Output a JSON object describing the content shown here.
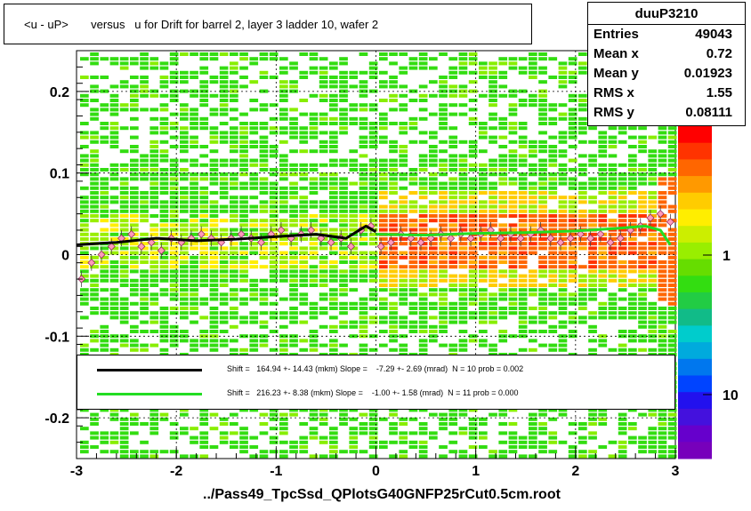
{
  "title": "<u - uP>       versus   u for Drift for barrel 2, layer 3 ladder 10, wafer 2",
  "footer": "../Pass49_TpcSsd_QPlotsG40GNFP25rCut0.5cm.root",
  "stats": {
    "name": "duuP3210",
    "rows": [
      {
        "label": "Entries",
        "value": "49043"
      },
      {
        "label": "Mean x",
        "value": "0.72"
      },
      {
        "label": "Mean y",
        "value": "0.01923"
      },
      {
        "label": "RMS x",
        "value": "1.55"
      },
      {
        "label": "RMS y",
        "value": "0.08111"
      }
    ]
  },
  "legend": [
    {
      "color": "#000000",
      "text": "Shift =   164.94 +- 14.43 (mkm) Slope =    -7.29 +- 2.69 (mrad)  N = 10 prob = 0.002"
    },
    {
      "color": "#22dd22",
      "text": "Shift =   216.23 +- 8.38 (mkm) Slope =    -1.00 +- 1.58 (mrad)  N = 11 prob = 0.000"
    }
  ],
  "chart_data": {
    "type": "heatmap",
    "xlim": [
      -3,
      3
    ],
    "ylim": [
      -0.25,
      0.25
    ],
    "x_ticks": [
      -3,
      -2,
      -1,
      0,
      1,
      2,
      3
    ],
    "y_ticks": [
      -0.2,
      -0.1,
      0,
      0.1,
      0.2
    ],
    "y_tick_labels": [
      "-0.2",
      "-0.1",
      "0",
      "0.1",
      "0.2"
    ],
    "color_scale": {
      "type": "log",
      "tick_labels": [
        "1",
        "10"
      ],
      "tick_values": [
        1,
        10
      ]
    },
    "grid": true,
    "profile_points": {
      "x": [
        -2.95,
        -2.85,
        -2.75,
        -2.65,
        -2.55,
        -2.45,
        -2.35,
        -2.25,
        -2.15,
        -2.05,
        -1.95,
        -1.85,
        -1.75,
        -1.65,
        -1.55,
        -1.45,
        -1.35,
        -1.25,
        -1.15,
        -1.05,
        -0.95,
        -0.85,
        -0.75,
        -0.65,
        -0.55,
        -0.45,
        -0.35,
        -0.25,
        -0.15,
        -0.05,
        0.05,
        0.15,
        0.25,
        0.35,
        0.45,
        0.55,
        0.65,
        0.75,
        0.85,
        0.95,
        1.05,
        1.15,
        1.25,
        1.35,
        1.45,
        1.55,
        1.65,
        1.75,
        1.85,
        1.95,
        2.05,
        2.15,
        2.25,
        2.35,
        2.45,
        2.55,
        2.65,
        2.75,
        2.85,
        2.95
      ],
      "y": [
        -0.03,
        -0.01,
        0.0,
        0.01,
        0.02,
        0.025,
        0.01,
        0.015,
        0.005,
        0.02,
        0.015,
        0.02,
        0.025,
        0.02,
        0.015,
        0.02,
        0.025,
        0.02,
        0.015,
        0.025,
        0.03,
        0.02,
        0.025,
        0.03,
        0.02,
        0.015,
        0.02,
        0.01,
        0.03,
        0.035,
        0.01,
        0.015,
        0.025,
        0.02,
        0.015,
        0.02,
        0.025,
        0.02,
        0.025,
        0.02,
        0.025,
        0.03,
        0.02,
        0.025,
        0.02,
        0.025,
        0.03,
        0.02,
        0.015,
        0.02,
        0.025,
        0.02,
        0.025,
        0.015,
        0.02,
        0.03,
        0.035,
        0.045,
        0.05,
        0.04
      ]
    },
    "fit_black": {
      "x_range": [
        -3,
        0
      ],
      "x": [
        -3,
        -2.6,
        -2.2,
        -1.8,
        -1.4,
        -1.0,
        -0.6,
        -0.3,
        -0.1,
        0.0
      ],
      "y": [
        0.012,
        0.015,
        0.02,
        0.017,
        0.019,
        0.022,
        0.025,
        0.02,
        0.035,
        0.028
      ]
    },
    "fit_green": {
      "x_range": [
        0,
        3
      ],
      "x": [
        0,
        0.5,
        1.0,
        1.5,
        2.0,
        2.4,
        2.7,
        2.85,
        2.95
      ],
      "y": [
        0.025,
        0.024,
        0.026,
        0.027,
        0.029,
        0.032,
        0.035,
        0.03,
        0.012
      ]
    }
  }
}
